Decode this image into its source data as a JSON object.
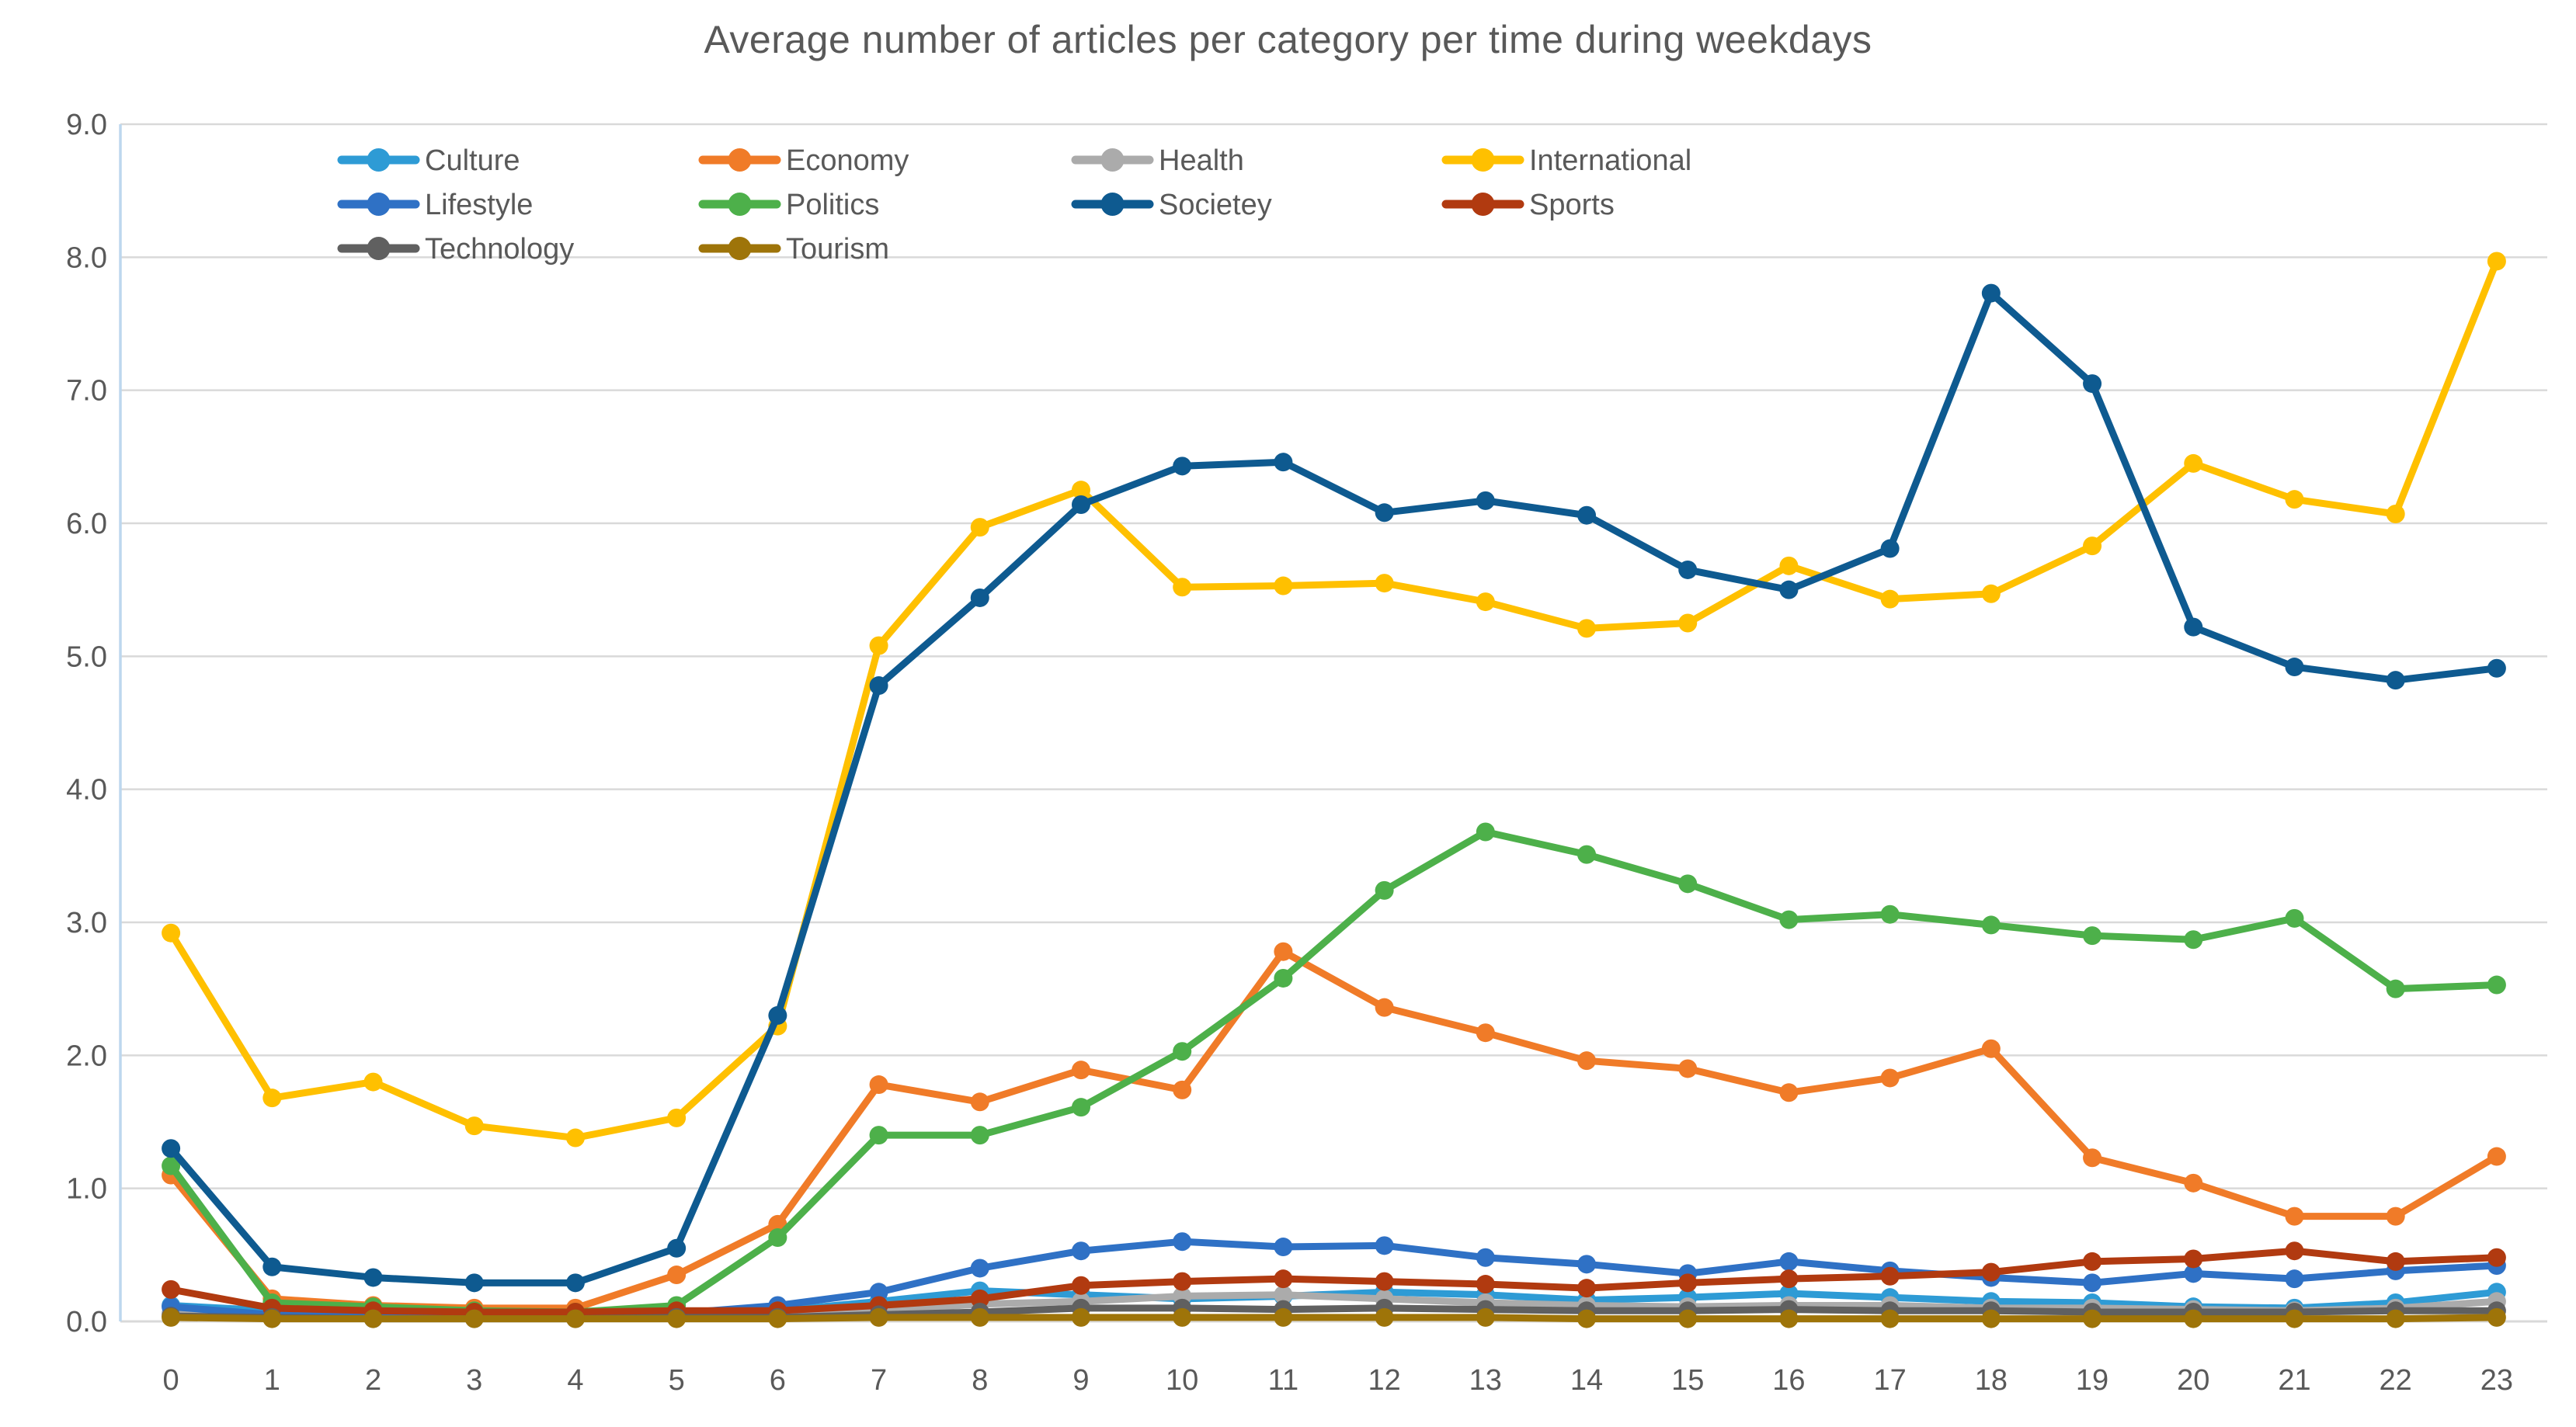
{
  "page": {
    "background": "#FFFFFF"
  },
  "chart_data": {
    "type": "line",
    "title": "Average number of articles per category per time during weekdays",
    "xlabel": "",
    "ylabel": "",
    "categories": [
      "0",
      "1",
      "2",
      "3",
      "4",
      "5",
      "6",
      "7",
      "8",
      "9",
      "10",
      "11",
      "12",
      "13",
      "14",
      "15",
      "16",
      "17",
      "18",
      "19",
      "20",
      "21",
      "22",
      "23"
    ],
    "ylim": [
      0,
      9
    ],
    "y_tick_labels_top_to_bottom": [
      "9.0",
      "8.0",
      "7.0",
      "6.0",
      "5.0",
      "4.0",
      "3.0",
      "2.0",
      "1.0",
      "0.0"
    ],
    "grid": true,
    "legend_position": "inside-top-left",
    "legend_columns": 4,
    "title_color": "#595959",
    "axis_text_color": "#595959",
    "gridline_color": "#D9D9D9",
    "axis_edge_color": "#BDD7EE",
    "series": [
      {
        "name": "Culture",
        "color": "#2E9BD5",
        "values": [
          0.12,
          0.08,
          0.06,
          0.05,
          0.05,
          0.06,
          0.08,
          0.15,
          0.23,
          0.2,
          0.17,
          0.19,
          0.22,
          0.2,
          0.16,
          0.18,
          0.21,
          0.18,
          0.15,
          0.14,
          0.11,
          0.1,
          0.14,
          0.22
        ]
      },
      {
        "name": "Economy",
        "color": "#F07B28",
        "values": [
          1.1,
          0.17,
          0.12,
          0.1,
          0.1,
          0.35,
          0.73,
          1.78,
          1.65,
          1.89,
          1.74,
          2.78,
          2.36,
          2.17,
          1.96,
          1.9,
          1.72,
          1.83,
          2.05,
          1.23,
          1.04,
          0.79,
          0.79,
          1.24
        ]
      },
      {
        "name": "Health",
        "color": "#ABABAB",
        "values": [
          0.06,
          0.04,
          0.03,
          0.03,
          0.03,
          0.04,
          0.05,
          0.08,
          0.13,
          0.15,
          0.19,
          0.2,
          0.17,
          0.14,
          0.12,
          0.11,
          0.12,
          0.12,
          0.1,
          0.1,
          0.09,
          0.08,
          0.1,
          0.15
        ]
      },
      {
        "name": "International",
        "color": "#FFC000",
        "values": [
          2.92,
          1.68,
          1.8,
          1.47,
          1.38,
          1.53,
          2.22,
          5.08,
          5.97,
          6.25,
          5.52,
          5.53,
          5.55,
          5.41,
          5.21,
          5.25,
          5.68,
          5.43,
          5.47,
          5.83,
          6.45,
          6.18,
          6.07,
          7.97
        ]
      },
      {
        "name": "Lifestyle",
        "color": "#2F71C5",
        "values": [
          0.11,
          0.05,
          0.04,
          0.03,
          0.03,
          0.06,
          0.12,
          0.22,
          0.4,
          0.53,
          0.6,
          0.56,
          0.57,
          0.48,
          0.43,
          0.36,
          0.45,
          0.38,
          0.33,
          0.29,
          0.36,
          0.32,
          0.38,
          0.42
        ]
      },
      {
        "name": "Politics",
        "color": "#4DB04A",
        "values": [
          1.17,
          0.14,
          0.11,
          0.08,
          0.07,
          0.12,
          0.63,
          1.4,
          1.4,
          1.61,
          2.03,
          2.58,
          3.24,
          3.68,
          3.51,
          3.29,
          3.02,
          3.06,
          2.98,
          2.9,
          2.87,
          3.03,
          2.5,
          2.53
        ]
      },
      {
        "name": "Societey",
        "color": "#0E5A90",
        "values": [
          1.3,
          0.41,
          0.33,
          0.29,
          0.29,
          0.55,
          2.3,
          4.78,
          5.44,
          6.14,
          6.43,
          6.46,
          6.08,
          6.17,
          6.06,
          5.65,
          5.5,
          5.81,
          7.73,
          7.05,
          5.22,
          4.92,
          4.82,
          4.91
        ]
      },
      {
        "name": "Sports",
        "color": "#B13A10",
        "values": [
          0.24,
          0.1,
          0.08,
          0.07,
          0.07,
          0.08,
          0.08,
          0.12,
          0.17,
          0.27,
          0.3,
          0.32,
          0.3,
          0.28,
          0.25,
          0.29,
          0.32,
          0.34,
          0.37,
          0.45,
          0.47,
          0.53,
          0.45,
          0.48
        ]
      },
      {
        "name": "Technology",
        "color": "#606060",
        "values": [
          0.04,
          0.03,
          0.02,
          0.02,
          0.02,
          0.03,
          0.03,
          0.05,
          0.07,
          0.1,
          0.1,
          0.09,
          0.1,
          0.09,
          0.08,
          0.08,
          0.09,
          0.08,
          0.08,
          0.07,
          0.07,
          0.07,
          0.08,
          0.08
        ]
      },
      {
        "name": "Tourism",
        "color": "#9E7409",
        "values": [
          0.03,
          0.02,
          0.02,
          0.02,
          0.02,
          0.02,
          0.02,
          0.03,
          0.03,
          0.03,
          0.03,
          0.03,
          0.03,
          0.03,
          0.02,
          0.02,
          0.02,
          0.02,
          0.02,
          0.02,
          0.02,
          0.02,
          0.02,
          0.03
        ]
      }
    ]
  }
}
